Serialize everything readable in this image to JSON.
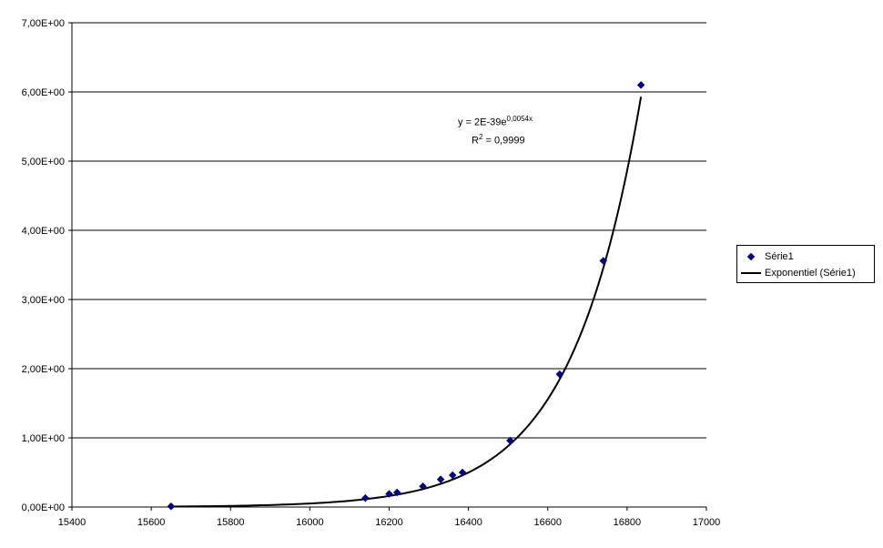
{
  "chart_data": {
    "type": "scatter",
    "title": "",
    "xlabel": "",
    "ylabel": "",
    "xlim": [
      15400,
      17000
    ],
    "ylim": [
      0,
      7
    ],
    "x_ticks": [
      "15400",
      "15600",
      "15800",
      "16000",
      "16200",
      "16400",
      "16600",
      "16800",
      "17000"
    ],
    "y_ticks": [
      "0,00E+00",
      "1,00E+00",
      "2,00E+00",
      "3,00E+00",
      "4,00E+00",
      "5,00E+00",
      "6,00E+00",
      "7,00E+00"
    ],
    "grid": "horizontal",
    "legend_position": "right",
    "series": [
      {
        "name": "Série1",
        "marker": "diamond",
        "color": "#000080",
        "x": [
          15650,
          16140,
          16200,
          16220,
          16285,
          16330,
          16360,
          16385,
          16505,
          16630,
          16740,
          16835
        ],
        "y": [
          0.01,
          0.13,
          0.19,
          0.21,
          0.3,
          0.4,
          0.46,
          0.5,
          0.96,
          1.92,
          3.56,
          6.1
        ]
      }
    ],
    "trendline": {
      "name": "Exponentiel (Série1)",
      "type": "exponential",
      "color": "#000000",
      "x_range": [
        15650,
        16835
      ],
      "y_range": [
        0.007,
        5.93
      ]
    },
    "annotation": {
      "equation_prefix": "y = 2E-39e",
      "equation_exponent": "0,0054x",
      "r2_prefix": "R",
      "r2_exponent": "2",
      "r2_suffix": " = 0,9999"
    }
  }
}
